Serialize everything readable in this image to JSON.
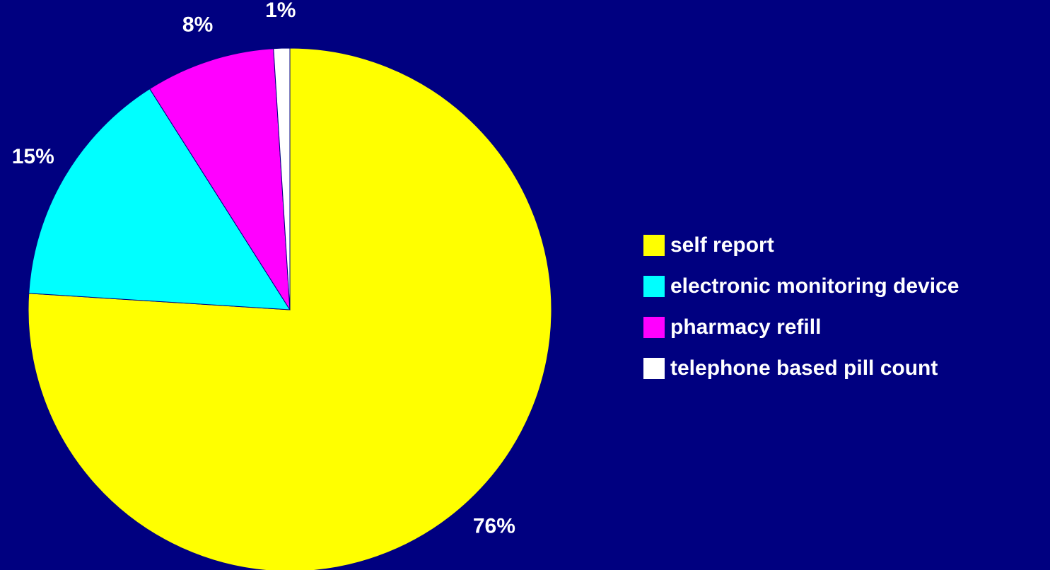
{
  "colors": {
    "background": "#000080",
    "text": "#FFFFFF",
    "slice_border": "#000080"
  },
  "chart_data": {
    "type": "pie",
    "categories": [
      "self report",
      "electronic monitoring device",
      "pharmacy refill",
      "telephone based pill count"
    ],
    "values": [
      76,
      15,
      8,
      1
    ],
    "value_labels": [
      "76%",
      "15%",
      "8%",
      "1%"
    ],
    "colors": [
      "#FFFF00",
      "#00FFFF",
      "#FF00FF",
      "#FFFFFF"
    ],
    "start_angle_deg": 0,
    "direction": "clockwise",
    "legend_position": "right",
    "title": ""
  },
  "legend": {
    "items": [
      {
        "label": "self report",
        "color": "#FFFF00"
      },
      {
        "label": "electronic monitoring device",
        "color": "#00FFFF"
      },
      {
        "label": "pharmacy refill",
        "color": "#FF00FF"
      },
      {
        "label": "telephone based pill count",
        "color": "#FFFFFF"
      }
    ]
  }
}
